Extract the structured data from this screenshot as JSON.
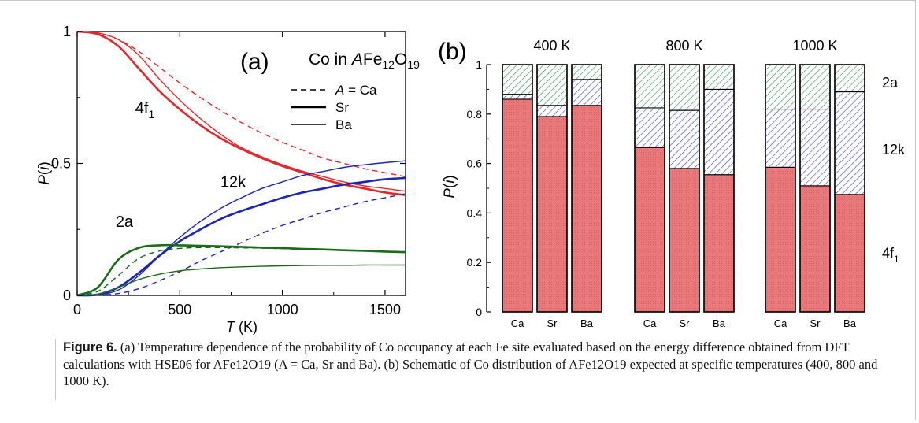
{
  "figure": {
    "caption_label": "Figure 6.",
    "caption_text": " (a) Temperature dependence of the probability of Co occupancy at each Fe site evaluated based on the energy difference obtained from DFT calculations with HSE06 for AFe12O19 (A = Ca, Sr and Ba). (b) Schematic of Co distribution of AFe12O19 expected at specific temperatures (400, 800 and 1000 K)."
  },
  "chart_data": [
    {
      "type": "line",
      "panel_label": "(a)",
      "title": "Co in AFe12O19",
      "xlabel": "T (K)",
      "ylabel": "P(i)",
      "xlim": [
        0,
        1600
      ],
      "ylim": [
        0,
        1
      ],
      "x_ticks": [
        0,
        500,
        1000,
        1500
      ],
      "y_ticks": [
        0,
        0.5,
        1
      ],
      "y_tick_labels": [
        "0",
        "0.5",
        "1"
      ],
      "grid": false,
      "legend": {
        "placement": "top-right",
        "entries": [
          {
            "label": "A = Ca",
            "style": "dashed"
          },
          {
            "label": "Sr",
            "style": "thick"
          },
          {
            "label": "Ba",
            "style": "thin"
          }
        ]
      },
      "site_labels": [
        {
          "text": "4f1",
          "x": 330,
          "y": 0.69
        },
        {
          "text": "12k",
          "x": 760,
          "y": 0.41
        },
        {
          "text": "2a",
          "x": 230,
          "y": 0.26
        }
      ],
      "colors": {
        "4f1": "#e8262a",
        "12k": "#1c25b4",
        "2a": "#1a6b1a"
      },
      "series": [
        {
          "site": "4f1",
          "host": "Ca",
          "x": [
            0,
            100,
            200,
            300,
            400,
            500,
            600,
            700,
            800,
            900,
            1000,
            1100,
            1200,
            1300,
            1400,
            1500,
            1600
          ],
          "values": [
            1.0,
            0.995,
            0.97,
            0.925,
            0.865,
            0.805,
            0.75,
            0.7,
            0.655,
            0.615,
            0.58,
            0.55,
            0.52,
            0.5,
            0.48,
            0.465,
            0.45
          ]
        },
        {
          "site": "4f1",
          "host": "Sr",
          "x": [
            0,
            100,
            200,
            300,
            400,
            500,
            600,
            700,
            800,
            900,
            1000,
            1100,
            1200,
            1300,
            1400,
            1500,
            1600
          ],
          "values": [
            1.0,
            0.99,
            0.945,
            0.86,
            0.775,
            0.705,
            0.645,
            0.595,
            0.555,
            0.52,
            0.49,
            0.465,
            0.44,
            0.42,
            0.405,
            0.39,
            0.38
          ]
        },
        {
          "site": "4f1",
          "host": "Ba",
          "x": [
            0,
            100,
            200,
            300,
            400,
            500,
            600,
            700,
            800,
            900,
            1000,
            1100,
            1200,
            1300,
            1400,
            1500,
            1600
          ],
          "values": [
            1.0,
            0.995,
            0.97,
            0.91,
            0.82,
            0.74,
            0.67,
            0.61,
            0.56,
            0.525,
            0.495,
            0.47,
            0.45,
            0.43,
            0.415,
            0.405,
            0.395
          ]
        },
        {
          "site": "12k",
          "host": "Ca",
          "x": [
            0,
            100,
            200,
            300,
            400,
            500,
            600,
            700,
            800,
            900,
            1000,
            1100,
            1200,
            1300,
            1400,
            1500,
            1600
          ],
          "values": [
            0.0,
            0.001,
            0.007,
            0.025,
            0.055,
            0.09,
            0.13,
            0.165,
            0.2,
            0.235,
            0.265,
            0.29,
            0.315,
            0.335,
            0.355,
            0.37,
            0.385
          ]
        },
        {
          "site": "12k",
          "host": "Sr",
          "x": [
            0,
            100,
            200,
            300,
            400,
            500,
            600,
            700,
            800,
            900,
            1000,
            1100,
            1200,
            1300,
            1400,
            1500,
            1600
          ],
          "values": [
            0.0,
            0.003,
            0.03,
            0.085,
            0.15,
            0.205,
            0.25,
            0.29,
            0.32,
            0.345,
            0.37,
            0.39,
            0.405,
            0.42,
            0.43,
            0.44,
            0.445
          ]
        },
        {
          "site": "12k",
          "host": "Ba",
          "x": [
            0,
            100,
            200,
            300,
            400,
            500,
            600,
            700,
            800,
            900,
            1000,
            1100,
            1200,
            1300,
            1400,
            1500,
            1600
          ],
          "values": [
            0.0,
            0.002,
            0.02,
            0.075,
            0.15,
            0.22,
            0.28,
            0.33,
            0.37,
            0.405,
            0.43,
            0.455,
            0.47,
            0.485,
            0.495,
            0.503,
            0.51
          ]
        },
        {
          "site": "2a",
          "host": "Ca",
          "x": [
            0,
            100,
            200,
            300,
            400,
            500,
            600,
            700,
            800,
            900,
            1000,
            1100,
            1200,
            1300,
            1400,
            1500,
            1600
          ],
          "values": [
            0.0,
            0.015,
            0.075,
            0.14,
            0.168,
            0.178,
            0.181,
            0.181,
            0.18,
            0.179,
            0.177,
            0.175,
            0.173,
            0.171,
            0.169,
            0.167,
            0.165
          ]
        },
        {
          "site": "2a",
          "host": "Sr",
          "x": [
            0,
            100,
            200,
            300,
            400,
            500,
            600,
            700,
            800,
            900,
            1000,
            1100,
            1200,
            1300,
            1400,
            1500,
            1600
          ],
          "values": [
            0.0,
            0.03,
            0.135,
            0.18,
            0.19,
            0.19,
            0.188,
            0.186,
            0.184,
            0.181,
            0.179,
            0.176,
            0.174,
            0.171,
            0.169,
            0.166,
            0.164
          ]
        },
        {
          "site": "2a",
          "host": "Ba",
          "x": [
            0,
            100,
            200,
            300,
            400,
            500,
            600,
            700,
            800,
            900,
            1000,
            1100,
            1200,
            1300,
            1400,
            1500,
            1600
          ],
          "values": [
            0.0,
            0.005,
            0.03,
            0.06,
            0.08,
            0.093,
            0.1,
            0.105,
            0.108,
            0.11,
            0.112,
            0.113,
            0.114,
            0.114,
            0.115,
            0.115,
            0.115
          ]
        }
      ]
    },
    {
      "type": "bar",
      "stacked": true,
      "panel_label": "(b)",
      "ylabel": "P(i)",
      "ylim": [
        0,
        1
      ],
      "y_ticks": [
        0,
        0.2,
        0.4,
        0.6,
        0.8,
        1
      ],
      "y_tick_labels": [
        "0",
        "0.2",
        "0.4",
        "0.6",
        "0.8",
        "1"
      ],
      "grid": false,
      "segment_labels": [
        "2a",
        "12k",
        "4f1"
      ],
      "colors": {
        "4f1": "#e8787a",
        "12k": "#3b3bbf",
        "2a": "#2e8b57"
      },
      "groups": [
        {
          "temperature": "400 K",
          "bars": [
            {
              "category": "Ca",
              "4f1": 0.86,
              "12k": 0.02,
              "2a": 0.12
            },
            {
              "category": "Sr",
              "4f1": 0.79,
              "12k": 0.045,
              "2a": 0.165
            },
            {
              "category": "Ba",
              "4f1": 0.835,
              "12k": 0.105,
              "2a": 0.06
            }
          ]
        },
        {
          "temperature": "800 K",
          "bars": [
            {
              "category": "Ca",
              "4f1": 0.665,
              "12k": 0.16,
              "2a": 0.175
            },
            {
              "category": "Sr",
              "4f1": 0.58,
              "12k": 0.235,
              "2a": 0.185
            },
            {
              "category": "Ba",
              "4f1": 0.555,
              "12k": 0.345,
              "2a": 0.1
            }
          ]
        },
        {
          "temperature": "1000 K",
          "bars": [
            {
              "category": "Ca",
              "4f1": 0.585,
              "12k": 0.235,
              "2a": 0.18
            },
            {
              "category": "Sr",
              "4f1": 0.51,
              "12k": 0.31,
              "2a": 0.18
            },
            {
              "category": "Ba",
              "4f1": 0.475,
              "12k": 0.415,
              "2a": 0.11
            }
          ]
        }
      ]
    }
  ]
}
